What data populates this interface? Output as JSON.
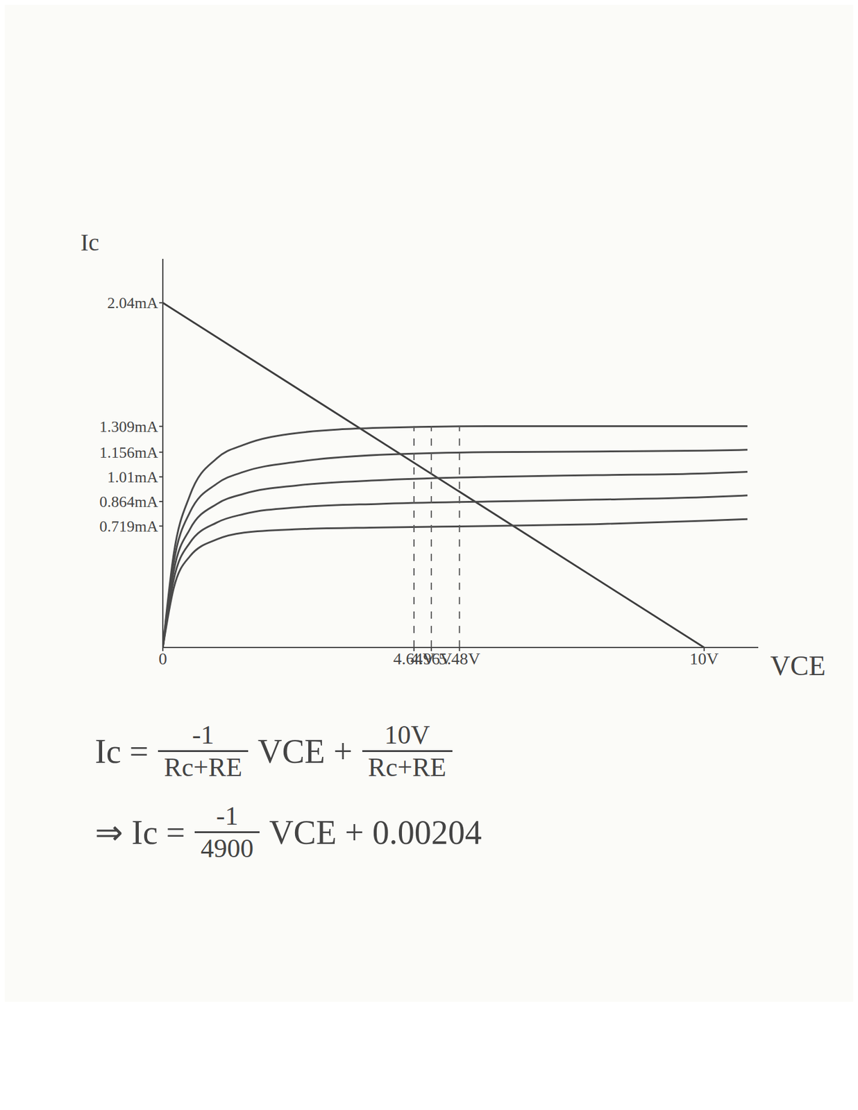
{
  "chart_data": {
    "type": "line",
    "x_label": "VCE",
    "y_label": "Ic",
    "xlim": [
      0,
      11
    ],
    "ylim": [
      0,
      2.3
    ],
    "xticks": [
      0,
      {
        "value": 4.64,
        "label": "4.64V"
      },
      {
        "value": 4.96,
        "label": "4.96V"
      },
      {
        "value": 5.48,
        "label": "5.48V"
      },
      {
        "value": 10,
        "label": "10V"
      }
    ],
    "yticks": [
      {
        "value": 0.719,
        "label": "0.719mA"
      },
      {
        "value": 0.864,
        "label": "0.864mA"
      },
      {
        "value": 1.01,
        "label": "1.01mA"
      },
      {
        "value": 1.156,
        "label": "1.156mA"
      },
      {
        "value": 1.309,
        "label": "1.309mA"
      },
      {
        "value": 2.04,
        "label": "2.04mA"
      }
    ],
    "grid": false,
    "series": [
      {
        "color": "#3d3d3d",
        "line_style": "solid",
        "x": [
          0,
          10
        ],
        "values": [
          2.04,
          0
        ]
      },
      {
        "color": "#4a4a4a",
        "line_style": "solid",
        "x": [
          0,
          0.2,
          0.5,
          1,
          1.5,
          2.5,
          4,
          6,
          8,
          10,
          10.8
        ],
        "values": [
          0,
          0.55,
          0.9,
          1.12,
          1.2,
          1.27,
          1.3,
          1.31,
          1.31,
          1.31,
          1.31
        ]
      },
      {
        "color": "#4a4a4a",
        "line_style": "solid",
        "x": [
          0,
          0.2,
          0.5,
          1,
          1.5,
          2.5,
          4,
          6,
          8,
          10,
          10.8
        ],
        "values": [
          0,
          0.5,
          0.8,
          0.97,
          1.04,
          1.1,
          1.14,
          1.156,
          1.16,
          1.165,
          1.17
        ]
      },
      {
        "color": "#4a4a4a",
        "line_style": "solid",
        "x": [
          0,
          0.2,
          0.5,
          1,
          1.5,
          2.5,
          4,
          6,
          8,
          10,
          10.8
        ],
        "values": [
          0,
          0.45,
          0.7,
          0.85,
          0.91,
          0.96,
          0.99,
          1.01,
          1.02,
          1.03,
          1.04
        ]
      },
      {
        "color": "#4a4a4a",
        "line_style": "solid",
        "x": [
          0,
          0.2,
          0.5,
          1,
          1.5,
          2.5,
          4,
          6,
          8,
          10,
          10.8
        ],
        "values": [
          0,
          0.4,
          0.62,
          0.74,
          0.79,
          0.83,
          0.85,
          0.864,
          0.875,
          0.89,
          0.9
        ]
      },
      {
        "color": "#4a4a4a",
        "line_style": "solid",
        "x": [
          0,
          0.2,
          0.5,
          1,
          1.5,
          2.5,
          4,
          6,
          8,
          10,
          10.8
        ],
        "values": [
          0,
          0.35,
          0.54,
          0.64,
          0.68,
          0.7,
          0.71,
          0.719,
          0.73,
          0.75,
          0.76
        ]
      },
      {
        "color": "#5a5a5a",
        "line_style": "dashed",
        "x": [
          4.64,
          4.64
        ],
        "values": [
          0,
          1.31
        ]
      },
      {
        "color": "#5a5a5a",
        "line_style": "dashed",
        "x": [
          4.96,
          4.96
        ],
        "values": [
          0,
          1.31
        ]
      },
      {
        "color": "#5a5a5a",
        "line_style": "dashed",
        "x": [
          5.48,
          5.48
        ],
        "values": [
          0,
          1.31
        ]
      }
    ],
    "equations": [
      [
        "Ic =",
        {
          "num": "-1",
          "den": "Rc+RE"
        },
        "VCE +",
        {
          "num": "10V",
          "den": "Rc+RE"
        }
      ],
      [
        "⇒ Ic =",
        {
          "num": "-1",
          "den": "4900"
        },
        "VCE + 0.00204"
      ]
    ]
  }
}
